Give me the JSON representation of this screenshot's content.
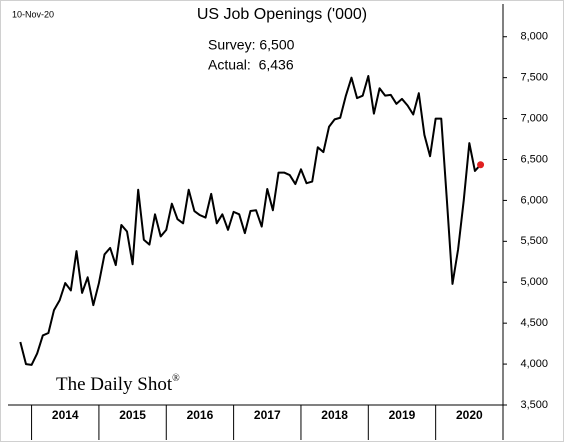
{
  "chart_data": {
    "type": "line",
    "title": "US Job Openings ('000)",
    "date": "10-Nov-20",
    "annotations": [
      "Survey: 6,500",
      "Actual:  6,436"
    ],
    "source": "The Daily Shot",
    "source_mark": "®",
    "x": [
      2013.833,
      2013.917,
      2014.0,
      2014.083,
      2014.167,
      2014.25,
      2014.333,
      2014.417,
      2014.5,
      2014.583,
      2014.667,
      2014.75,
      2014.833,
      2014.917,
      2015.0,
      2015.083,
      2015.167,
      2015.25,
      2015.333,
      2015.417,
      2015.5,
      2015.583,
      2015.667,
      2015.75,
      2015.833,
      2015.917,
      2016.0,
      2016.083,
      2016.167,
      2016.25,
      2016.333,
      2016.417,
      2016.5,
      2016.583,
      2016.667,
      2016.75,
      2016.833,
      2016.917,
      2017.0,
      2017.083,
      2017.167,
      2017.25,
      2017.333,
      2017.417,
      2017.5,
      2017.583,
      2017.667,
      2017.75,
      2017.833,
      2017.917,
      2018.0,
      2018.083,
      2018.167,
      2018.25,
      2018.333,
      2018.417,
      2018.5,
      2018.583,
      2018.667,
      2018.75,
      2018.833,
      2018.917,
      2019.0,
      2019.083,
      2019.167,
      2019.25,
      2019.333,
      2019.417,
      2019.5,
      2019.583,
      2019.667,
      2019.75,
      2019.833,
      2019.917,
      2020.0,
      2020.083,
      2020.167,
      2020.25,
      2020.333,
      2020.417,
      2020.5,
      2020.583,
      2020.667
    ],
    "series": [
      {
        "name": "US Job Openings",
        "color": "#000000",
        "last_point_color": "#e02020",
        "values": [
          4270,
          4000,
          3990,
          4130,
          4350,
          4380,
          4660,
          4780,
          4990,
          4900,
          5380,
          4870,
          5060,
          4720,
          4990,
          5340,
          5420,
          5210,
          5700,
          5620,
          5220,
          6130,
          5520,
          5460,
          5830,
          5560,
          5640,
          5960,
          5770,
          5720,
          6130,
          5870,
          5820,
          5790,
          6080,
          5720,
          5830,
          5640,
          5860,
          5830,
          5600,
          5870,
          5880,
          5680,
          6140,
          5880,
          6340,
          6340,
          6310,
          6200,
          6380,
          6210,
          6230,
          6650,
          6590,
          6900,
          6990,
          7010,
          7280,
          7500,
          7250,
          7280,
          7520,
          7060,
          7370,
          7280,
          7290,
          7180,
          7240,
          7160,
          7050,
          7310,
          6800,
          6540,
          7000,
          7000,
          6000,
          4980,
          5400,
          6000,
          6700,
          6360,
          6436
        ]
      }
    ],
    "xlim": [
      2013.65,
      2021.0
    ],
    "xticks": [
      {
        "value": 2014,
        "label": "2014"
      },
      {
        "value": 2015,
        "label": "2015"
      },
      {
        "value": 2016,
        "label": "2016"
      },
      {
        "value": 2017,
        "label": "2017"
      },
      {
        "value": 2018,
        "label": "2018"
      },
      {
        "value": 2019,
        "label": "2019"
      },
      {
        "value": 2020,
        "label": "2020"
      }
    ],
    "ylim": [
      3500,
      8400
    ],
    "yticks": [
      {
        "value": 3500,
        "label": "3,500"
      },
      {
        "value": 4000,
        "label": "4,000"
      },
      {
        "value": 4500,
        "label": "4,500"
      },
      {
        "value": 5000,
        "label": "5,000"
      },
      {
        "value": 5500,
        "label": "5,500"
      },
      {
        "value": 6000,
        "label": "6,000"
      },
      {
        "value": 6500,
        "label": "6,500"
      },
      {
        "value": 7000,
        "label": "7,000"
      },
      {
        "value": 7500,
        "label": "7,500"
      },
      {
        "value": 8000,
        "label": "8,000"
      }
    ],
    "grid": false
  }
}
